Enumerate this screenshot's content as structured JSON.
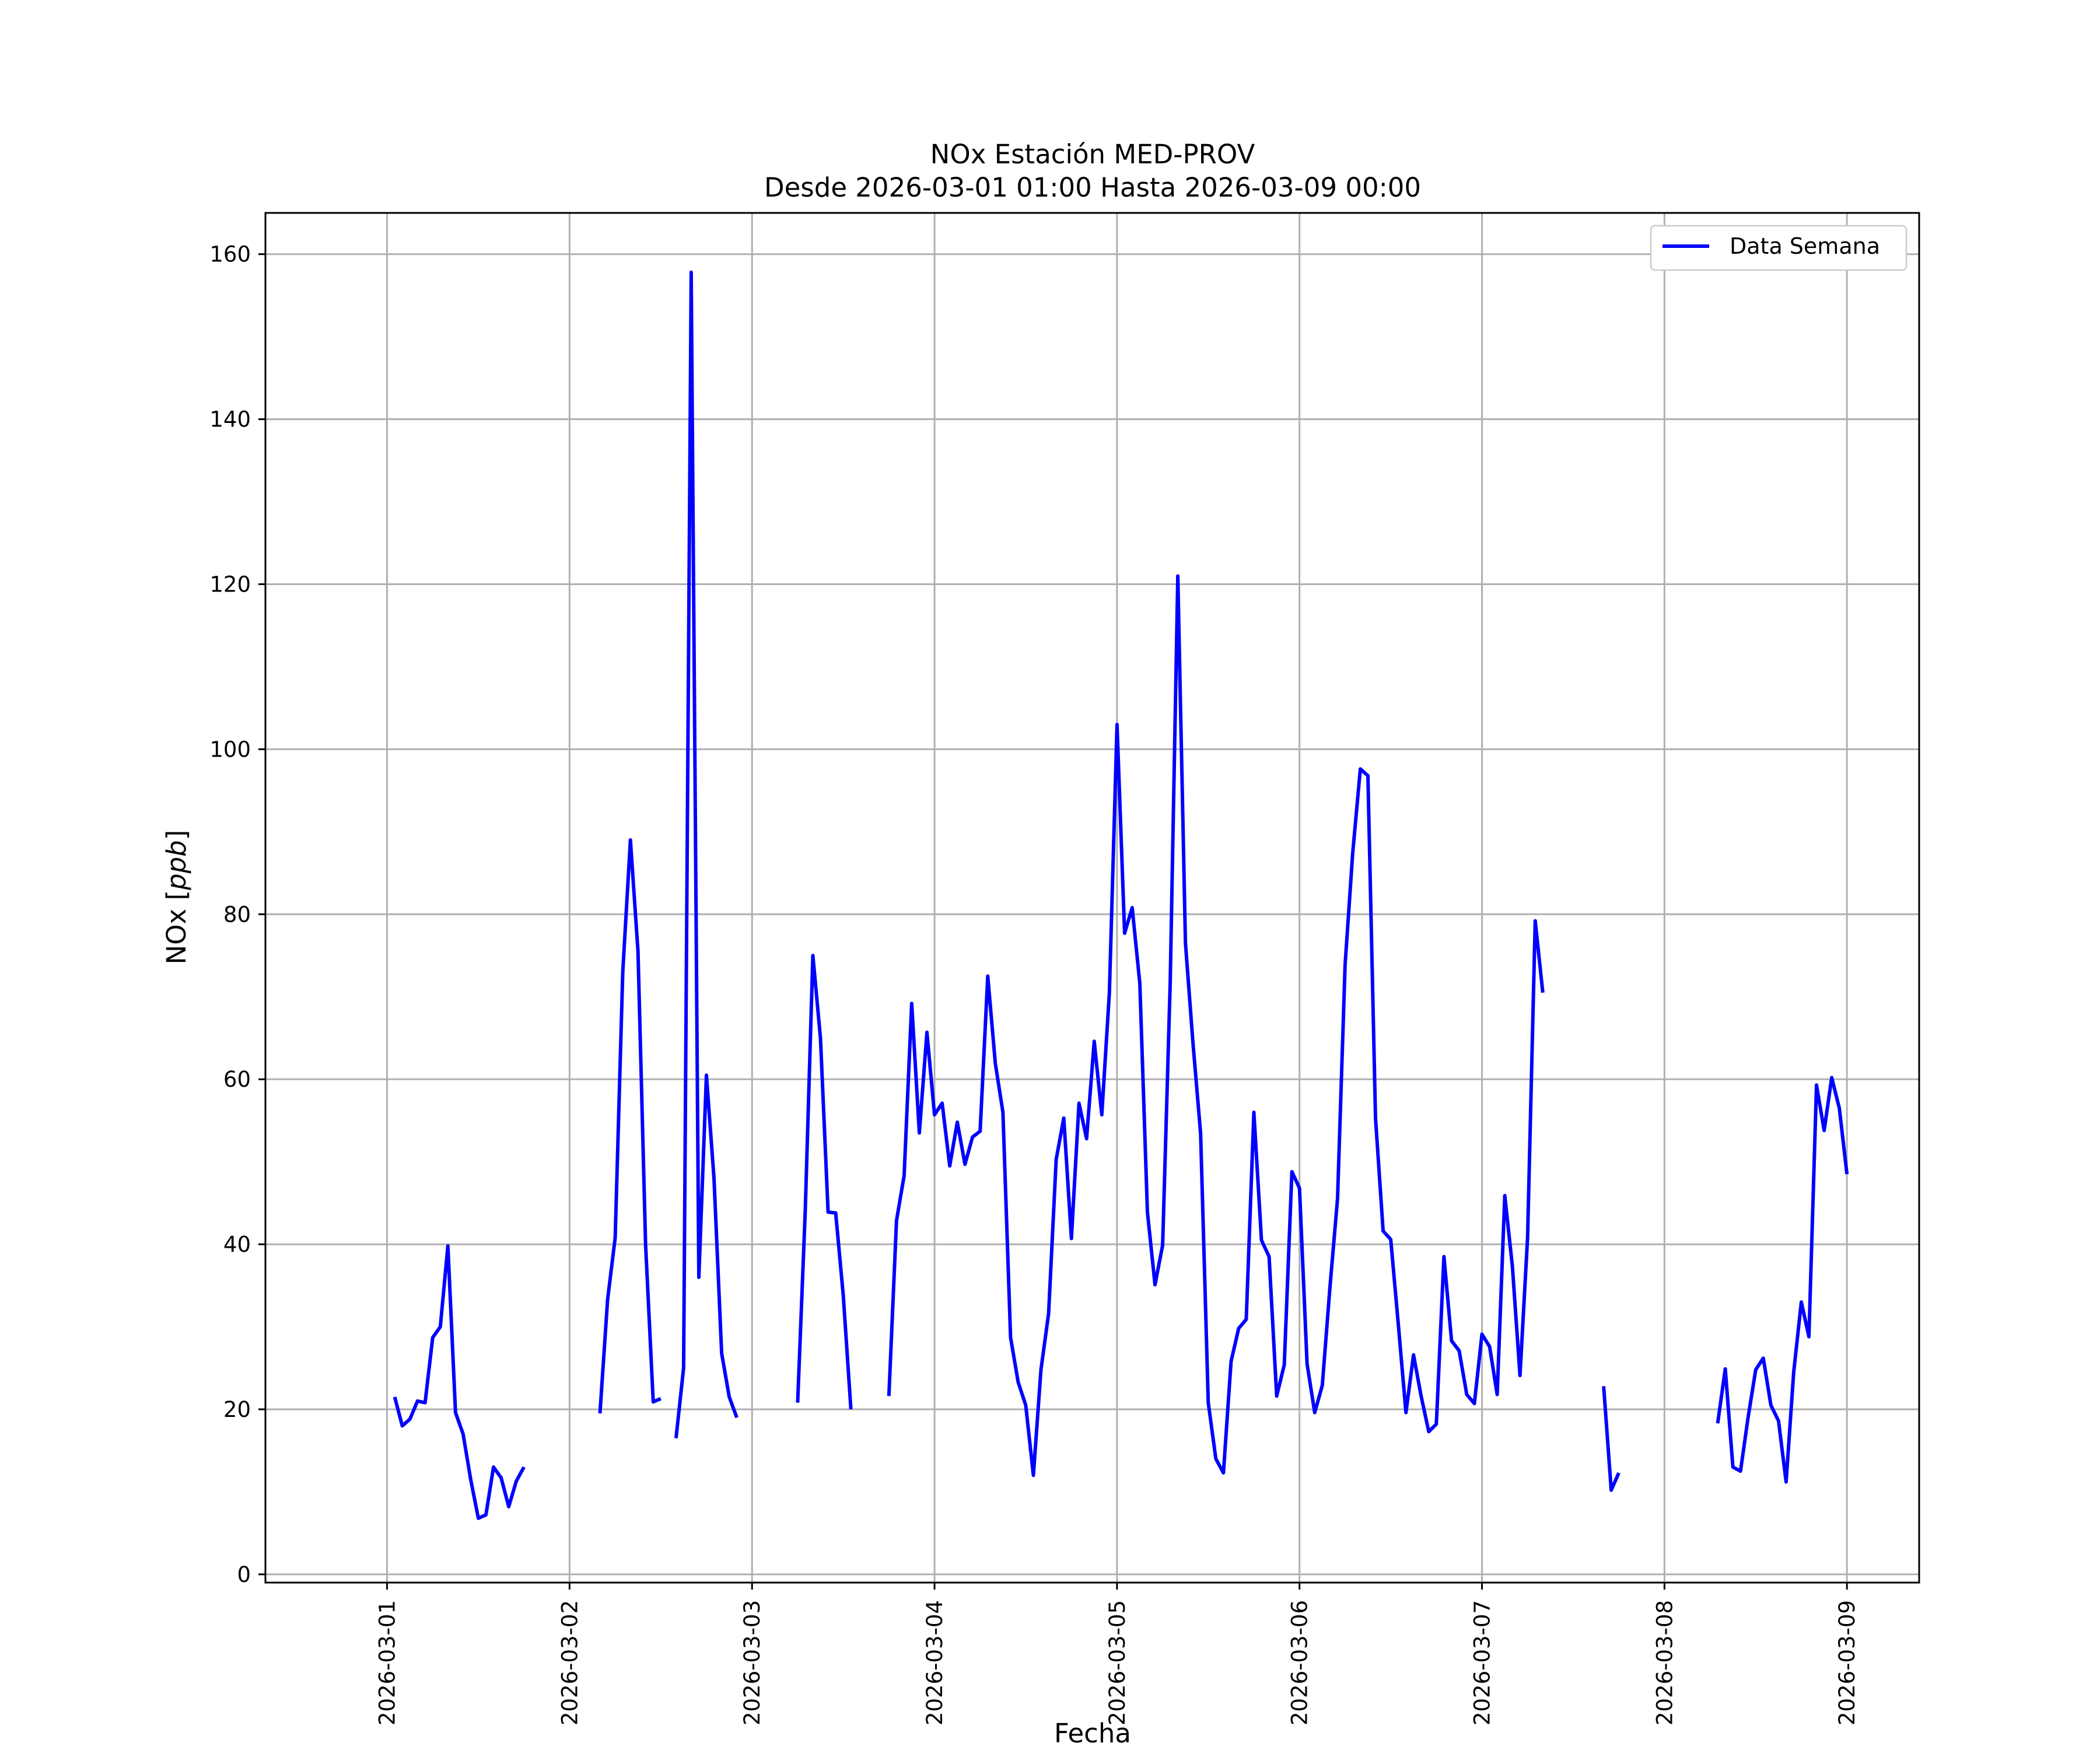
{
  "chart_data": {
    "type": "line",
    "title": "NOx Estación MED-PROV",
    "subtitle": "Desde 2026-03-01 01:00 Hasta 2026-03-09 00:00",
    "xlabel": "Fecha",
    "ylabel_main": "NOx [",
    "ylabel_unit": "ppb",
    "ylabel_close": "]",
    "x_type": "date",
    "xlim": [
      "2026-02-28 08:00",
      "2026-03-09 09:30"
    ],
    "ylim": [
      -1,
      165
    ],
    "grid": true,
    "legend_position": "top-right",
    "colors": {
      "series": "#0000ff",
      "grid": "#b0b0b0",
      "axes": "#000000"
    },
    "x_ticks": [
      "2026-03-01",
      "2026-03-02",
      "2026-03-03",
      "2026-03-04",
      "2026-03-05",
      "2026-03-06",
      "2026-03-07",
      "2026-03-08",
      "2026-03-09"
    ],
    "y_ticks": [
      0,
      20,
      40,
      60,
      80,
      100,
      120,
      140,
      160
    ],
    "series": [
      {
        "name": "Data Semana",
        "color": "#0000ff",
        "segments": [
          [
            [
              "2026-03-01 01:00",
              21.5
            ],
            [
              "2026-03-01 02:00",
              18
            ],
            [
              "2026-03-01 03:00",
              18.8
            ],
            [
              "2026-03-01 04:00",
              21
            ],
            [
              "2026-03-01 05:00",
              20.8
            ],
            [
              "2026-03-01 06:00",
              28.7
            ],
            [
              "2026-03-01 07:00",
              30
            ],
            [
              "2026-03-01 08:00",
              39.8
            ],
            [
              "2026-03-01 09:00",
              19.6
            ],
            [
              "2026-03-01 10:00",
              17
            ],
            [
              "2026-03-01 11:00",
              11.5
            ],
            [
              "2026-03-01 12:00",
              6.8
            ],
            [
              "2026-03-01 13:00",
              7.2
            ],
            [
              "2026-03-01 14:00",
              13
            ],
            [
              "2026-03-01 15:00",
              11.7
            ],
            [
              "2026-03-01 16:00",
              8.2
            ],
            [
              "2026-03-01 17:00",
              11.3
            ],
            [
              "2026-03-01 18:00",
              13
            ]
          ],
          [
            [
              "2026-03-02 04:00",
              19.5
            ],
            [
              "2026-03-02 05:00",
              33.3
            ],
            [
              "2026-03-02 06:00",
              40.8
            ],
            [
              "2026-03-02 07:00",
              73
            ],
            [
              "2026-03-02 08:00",
              89
            ],
            [
              "2026-03-02 09:00",
              75.5
            ],
            [
              "2026-03-02 10:00",
              40
            ],
            [
              "2026-03-02 11:00",
              20.9
            ],
            [
              "2026-03-02 12:00",
              21.3
            ]
          ],
          [
            [
              "2026-03-02 14:00",
              16.5
            ],
            [
              "2026-03-02 15:00",
              25
            ],
            [
              "2026-03-02 16:00",
              157.8
            ],
            [
              "2026-03-02 17:00",
              36
            ],
            [
              "2026-03-02 18:00",
              60.5
            ],
            [
              "2026-03-02 19:00",
              48
            ],
            [
              "2026-03-02 20:00",
              26.8
            ],
            [
              "2026-03-02 21:00",
              21.5
            ],
            [
              "2026-03-02 22:00",
              19
            ]
          ],
          [
            [
              "2026-03-03 06:00",
              20.8
            ],
            [
              "2026-03-03 07:00",
              44
            ],
            [
              "2026-03-03 08:00",
              75
            ],
            [
              "2026-03-03 09:00",
              65
            ],
            [
              "2026-03-03 10:00",
              43.9
            ],
            [
              "2026-03-03 11:00",
              43.8
            ],
            [
              "2026-03-03 12:00",
              33.8
            ],
            [
              "2026-03-03 13:00",
              20
            ]
          ],
          [
            [
              "2026-03-03 18:00",
              21.6
            ],
            [
              "2026-03-03 19:00",
              42.9
            ],
            [
              "2026-03-03 20:00",
              48.3
            ],
            [
              "2026-03-03 21:00",
              69.2
            ],
            [
              "2026-03-03 22:00",
              53.5
            ],
            [
              "2026-03-03 23:00",
              65.7
            ],
            [
              "2026-03-04 00:00",
              55.7
            ],
            [
              "2026-03-04 01:00",
              57.1
            ],
            [
              "2026-03-04 02:00",
              49.5
            ],
            [
              "2026-03-04 03:00",
              54.8
            ],
            [
              "2026-03-04 04:00",
              49.7
            ],
            [
              "2026-03-04 05:00",
              53
            ],
            [
              "2026-03-04 06:00",
              53.7
            ],
            [
              "2026-03-04 07:00",
              72.5
            ],
            [
              "2026-03-04 08:00",
              61.9
            ],
            [
              "2026-03-04 09:00",
              56
            ],
            [
              "2026-03-04 10:00",
              28.7
            ],
            [
              "2026-03-04 11:00",
              23.3
            ],
            [
              "2026-03-04 12:00",
              20.5
            ],
            [
              "2026-03-04 13:00",
              12
            ],
            [
              "2026-03-04 14:00",
              24.8
            ],
            [
              "2026-03-04 15:00",
              31.6
            ],
            [
              "2026-03-04 16:00",
              50.3
            ],
            [
              "2026-03-04 17:00",
              55.3
            ],
            [
              "2026-03-04 18:00",
              40.7
            ],
            [
              "2026-03-04 19:00",
              57.1
            ],
            [
              "2026-03-04 20:00",
              52.8
            ],
            [
              "2026-03-04 21:00",
              64.6
            ],
            [
              "2026-03-04 22:00",
              55.7
            ],
            [
              "2026-03-04 23:00",
              70.5
            ],
            [
              "2026-03-05 00:00",
              103
            ],
            [
              "2026-03-05 01:00",
              77.7
            ],
            [
              "2026-03-05 02:00",
              80.8
            ],
            [
              "2026-03-05 03:00",
              71.6
            ],
            [
              "2026-03-05 04:00",
              43.9
            ],
            [
              "2026-03-05 05:00",
              35.1
            ],
            [
              "2026-03-05 06:00",
              39.9
            ],
            [
              "2026-03-05 07:00",
              71.8
            ],
            [
              "2026-03-05 08:00",
              121
            ],
            [
              "2026-03-05 09:00",
              76.5
            ],
            [
              "2026-03-05 10:00",
              64.3
            ],
            [
              "2026-03-05 11:00",
              53.4
            ],
            [
              "2026-03-05 12:00",
              20.8
            ],
            [
              "2026-03-05 13:00",
              14
            ],
            [
              "2026-03-05 14:00",
              12.3
            ],
            [
              "2026-03-05 15:00",
              25.8
            ],
            [
              "2026-03-05 16:00",
              29.8
            ],
            [
              "2026-03-05 17:00",
              30.9
            ],
            [
              "2026-03-05 18:00",
              56
            ],
            [
              "2026-03-05 19:00",
              40.5
            ],
            [
              "2026-03-05 20:00",
              38.5
            ],
            [
              "2026-03-05 21:00",
              21.6
            ],
            [
              "2026-03-05 22:00",
              25.4
            ],
            [
              "2026-03-05 23:00",
              48.8
            ],
            [
              "2026-03-06 00:00",
              46.8
            ],
            [
              "2026-03-06 01:00",
              25.5
            ],
            [
              "2026-03-06 02:00",
              19.6
            ],
            [
              "2026-03-06 03:00",
              22.9
            ],
            [
              "2026-03-06 04:00",
              34.7
            ],
            [
              "2026-03-06 05:00",
              45.5
            ],
            [
              "2026-03-06 06:00",
              73.9
            ],
            [
              "2026-03-06 07:00",
              87.4
            ],
            [
              "2026-03-06 08:00",
              97.6
            ],
            [
              "2026-03-06 09:00",
              96.8
            ],
            [
              "2026-03-06 10:00",
              55.3
            ],
            [
              "2026-03-06 11:00",
              41.6
            ],
            [
              "2026-03-06 12:00",
              40.6
            ],
            [
              "2026-03-06 13:00",
              30.3
            ],
            [
              "2026-03-06 14:00",
              19.6
            ],
            [
              "2026-03-06 15:00",
              26.6
            ],
            [
              "2026-03-06 16:00",
              21.6
            ],
            [
              "2026-03-06 17:00",
              17.3
            ],
            [
              "2026-03-06 18:00",
              18.2
            ],
            [
              "2026-03-06 19:00",
              38.5
            ],
            [
              "2026-03-06 20:00",
              28.3
            ],
            [
              "2026-03-06 21:00",
              27.1
            ],
            [
              "2026-03-06 22:00",
              21.8
            ],
            [
              "2026-03-06 23:00",
              20.7
            ],
            [
              "2026-03-07 00:00",
              29.1
            ],
            [
              "2026-03-07 01:00",
              27.6
            ],
            [
              "2026-03-07 02:00",
              21.8
            ],
            [
              "2026-03-07 03:00",
              45.9
            ],
            [
              "2026-03-07 04:00",
              37.3
            ],
            [
              "2026-03-07 05:00",
              24.1
            ],
            [
              "2026-03-07 06:00",
              40.8
            ],
            [
              "2026-03-07 07:00",
              79.2
            ],
            [
              "2026-03-07 08:00",
              70.5
            ]
          ],
          [
            [
              "2026-03-07 16:00",
              22.8
            ],
            [
              "2026-03-07 17:00",
              10.2
            ],
            [
              "2026-03-07 18:00",
              12.3
            ]
          ],
          [
            [
              "2026-03-08 07:00",
              18.3
            ],
            [
              "2026-03-08 08:00",
              24.9
            ],
            [
              "2026-03-08 09:00",
              13
            ],
            [
              "2026-03-08 10:00",
              12.5
            ],
            [
              "2026-03-08 11:00",
              19
            ],
            [
              "2026-03-08 12:00",
              24.8
            ],
            [
              "2026-03-08 13:00",
              26.2
            ],
            [
              "2026-03-08 14:00",
              20.5
            ],
            [
              "2026-03-08 15:00",
              18.6
            ],
            [
              "2026-03-08 16:00",
              11.2
            ],
            [
              "2026-03-08 17:00",
              24.5
            ],
            [
              "2026-03-08 18:00",
              33
            ],
            [
              "2026-03-08 19:00",
              28.8
            ],
            [
              "2026-03-08 20:00",
              59.3
            ],
            [
              "2026-03-08 21:00",
              53.8
            ],
            [
              "2026-03-08 22:00",
              60.2
            ],
            [
              "2026-03-08 23:00",
              56.5
            ],
            [
              "2026-03-09 00:00",
              48.5
            ]
          ]
        ]
      }
    ]
  }
}
